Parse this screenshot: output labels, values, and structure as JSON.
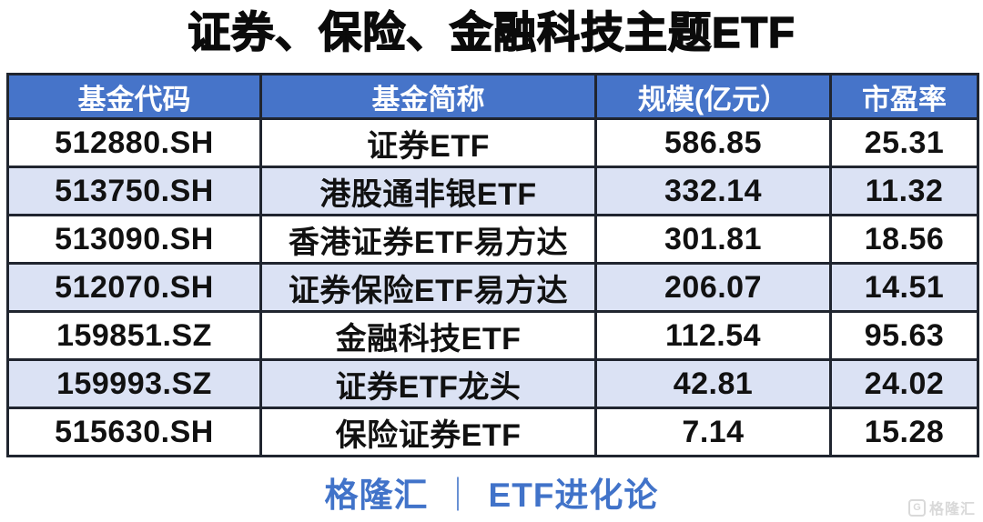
{
  "title": "证券、保险、金融科技主题ETF",
  "chart_data": {
    "type": "table",
    "title": "证券、保险、金融科技主题ETF",
    "columns": [
      "基金代码",
      "基金简称",
      "规模(亿元）",
      "市盈率"
    ],
    "rows": [
      [
        "512880.SH",
        "证券ETF",
        "586.85",
        "25.31"
      ],
      [
        "513750.SH",
        "港股通非银ETF",
        "332.14",
        "11.32"
      ],
      [
        "513090.SH",
        "香港证券ETF易方达",
        "301.81",
        "18.56"
      ],
      [
        "512070.SH",
        "证券保险ETF易方达",
        "206.07",
        "14.51"
      ],
      [
        "159851.SZ",
        "金融科技ETF",
        "112.54",
        "95.63"
      ],
      [
        "159993.SZ",
        "证券ETF龙头",
        "42.81",
        "24.02"
      ],
      [
        "515630.SH",
        "保险证券ETF",
        "7.14",
        "15.28"
      ]
    ]
  },
  "footer": {
    "brand": "格隆汇",
    "separator": "｜",
    "channel": "ETF进化论"
  },
  "watermark": {
    "icon_letter": "G",
    "text": "格隆汇"
  },
  "colors": {
    "header_bg": "#4674c9",
    "row_alt_bg": "#dbe2f4",
    "border": "#20252f",
    "title_text": "#0b0b0b",
    "footer_text": "#4173c9",
    "watermark": "#d9d9d9"
  }
}
